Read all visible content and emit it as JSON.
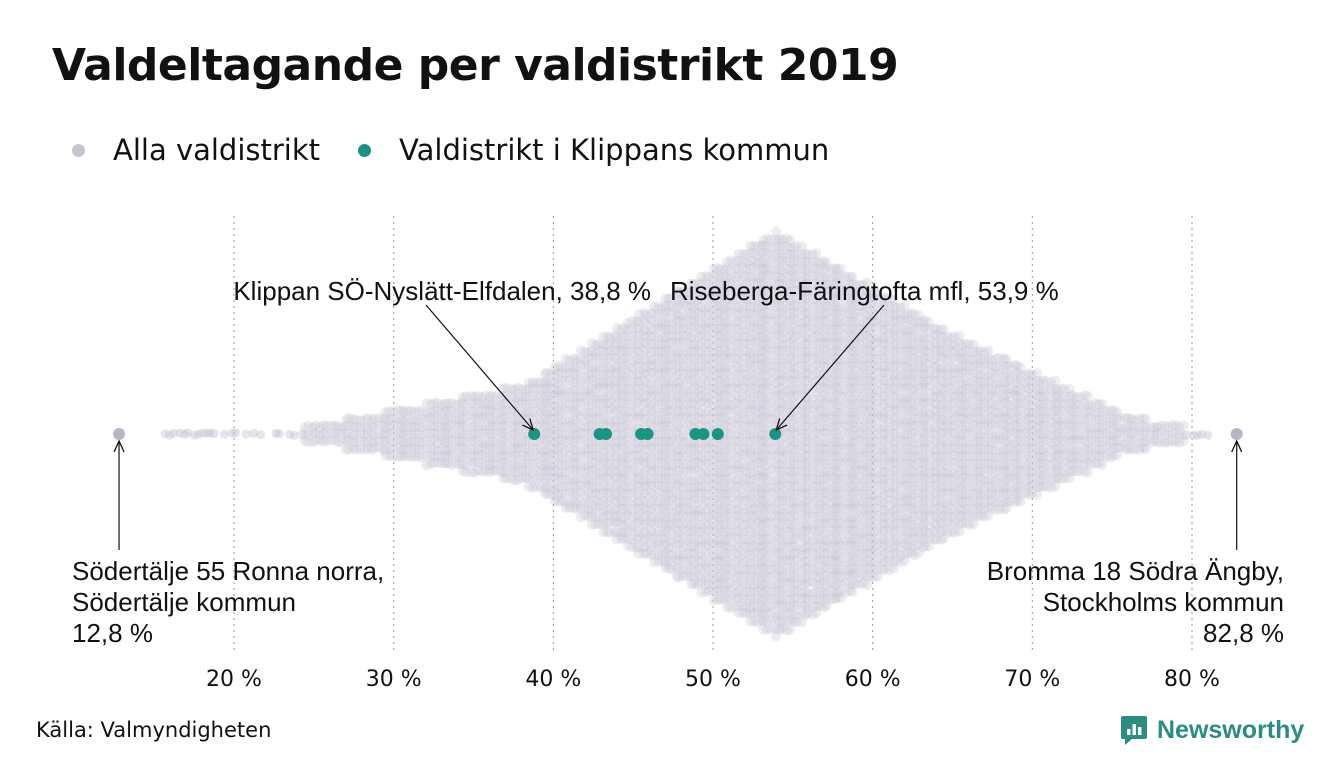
{
  "title": "Valdeltagande per valdistrikt 2019",
  "legend": [
    {
      "label": "Alla valdistrikt",
      "color": "#c6c3d2"
    },
    {
      "label": "Valdistrikt i Klippans kommun",
      "color": "#1a9485"
    }
  ],
  "source": "Källa: Valmyndigheten",
  "brand": {
    "name": "Newsworthy",
    "color": "#2a8c82"
  },
  "chart_data": {
    "type": "scatter",
    "subtype": "beeswarm",
    "title": "Valdeltagande per valdistrikt 2019",
    "xlabel": "",
    "ylabel": "",
    "xlim": [
      12,
      84
    ],
    "x_ticks": [
      20,
      30,
      40,
      50,
      60,
      70,
      80
    ],
    "x_tick_labels": [
      "20 %",
      "30 %",
      "40 %",
      "50 %",
      "60 %",
      "70 %",
      "80 %"
    ],
    "grid": "vertical-dotted",
    "legend_position": "top-left",
    "distribution": {
      "min": 12.8,
      "max": 82.8,
      "mode": 53.9
    },
    "series": [
      {
        "name": "Valdistrikt i Klippans kommun",
        "color": "#1a9485",
        "x": [
          38.8,
          42.9,
          43.3,
          45.5,
          45.9,
          48.9,
          49.4,
          50.3,
          53.9
        ]
      }
    ],
    "annotations": [
      {
        "lines": [
          "Klippan SÖ-Nyslätt-Elfdalen, 38,8 %"
        ],
        "x": 38.8
      },
      {
        "lines": [
          "Riseberga-Färingtofta mfl, 53,9 %"
        ],
        "x": 53.9
      },
      {
        "lines": [
          "Södertälje 55 Ronna norra,",
          "Södertälje kommun",
          "12,8 %"
        ],
        "x": 12.8
      },
      {
        "lines": [
          "Bromma 18 Södra Ängby,",
          "Stockholms kommun",
          "82,8 %"
        ],
        "x": 82.8
      }
    ]
  }
}
